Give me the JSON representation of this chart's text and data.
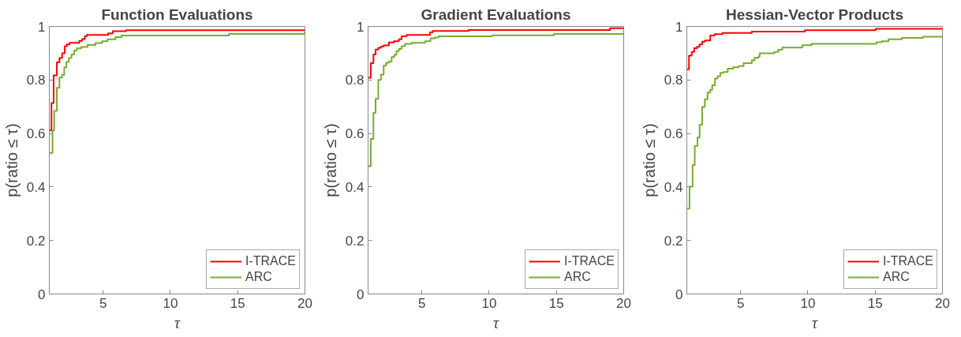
{
  "chart_data": [
    {
      "type": "step",
      "title": "Function Evaluations",
      "xlabel": "τ",
      "ylabel": "p(ratio ≤ τ)",
      "xlim": [
        1,
        20
      ],
      "ylim": [
        0,
        1
      ],
      "xticks": [
        5,
        10,
        15,
        20
      ],
      "yticks": [
        0,
        0.2,
        0.4,
        0.6,
        0.8,
        1
      ],
      "grid": false,
      "legend": "bottom right",
      "series": [
        {
          "name": "I-TRACE",
          "color": "#ff0000",
          "x": [
            1,
            1.16,
            1.32,
            1.56,
            1.75,
            1.95,
            2.15,
            2.31,
            2.51,
            3.24,
            3.44,
            3.64,
            3.78,
            5.37,
            5.72,
            6.71,
            20
          ],
          "values": [
            0.611,
            0.714,
            0.817,
            0.866,
            0.882,
            0.9,
            0.926,
            0.933,
            0.939,
            0.946,
            0.953,
            0.963,
            0.968,
            0.974,
            0.982,
            0.986,
            0.986
          ]
        },
        {
          "name": "ARC",
          "color": "#77ac30",
          "x": [
            1,
            1.24,
            1.36,
            1.56,
            1.75,
            1.95,
            2.11,
            2.27,
            2.45,
            2.65,
            2.85,
            3.04,
            3.38,
            3.84,
            4.43,
            4.93,
            5.33,
            5.92,
            6.36,
            14.35,
            19.97,
            20
          ],
          "values": [
            0.527,
            0.611,
            0.684,
            0.771,
            0.809,
            0.819,
            0.847,
            0.867,
            0.882,
            0.895,
            0.91,
            0.918,
            0.923,
            0.931,
            0.938,
            0.945,
            0.952,
            0.96,
            0.966,
            0.972,
            0.977,
            0.977
          ]
        }
      ]
    },
    {
      "type": "step",
      "title": "Gradient Evaluations",
      "xlabel": "τ",
      "ylabel": "p(ratio ≤ τ)",
      "xlim": [
        1,
        20
      ],
      "ylim": [
        0,
        1
      ],
      "xticks": [
        5,
        10,
        15,
        20
      ],
      "yticks": [
        0,
        0.2,
        0.4,
        0.6,
        0.8,
        1
      ],
      "grid": false,
      "legend": "bottom right",
      "series": [
        {
          "name": "I-TRACE",
          "color": "#ff0000",
          "x": [
            1,
            1.2,
            1.4,
            1.56,
            1.76,
            1.96,
            2.16,
            2.55,
            2.91,
            3.29,
            3.49,
            3.85,
            5.6,
            5.8,
            8.47,
            18.99,
            20
          ],
          "values": [
            0.808,
            0.863,
            0.895,
            0.914,
            0.92,
            0.925,
            0.929,
            0.94,
            0.945,
            0.952,
            0.963,
            0.968,
            0.978,
            0.983,
            0.987,
            0.993,
            0.993
          ]
        },
        {
          "name": "ARC",
          "color": "#77ac30",
          "x": [
            1,
            1.2,
            1.4,
            1.56,
            1.76,
            1.96,
            2.16,
            2.35,
            2.55,
            2.75,
            2.95,
            3.11,
            3.29,
            3.49,
            3.75,
            4.25,
            5.24,
            5.64,
            5.94,
            6.24,
            10.22,
            14.8,
            20
          ],
          "values": [
            0.478,
            0.58,
            0.677,
            0.729,
            0.8,
            0.82,
            0.854,
            0.864,
            0.869,
            0.886,
            0.894,
            0.908,
            0.916,
            0.926,
            0.935,
            0.939,
            0.945,
            0.955,
            0.959,
            0.963,
            0.967,
            0.972,
            0.972
          ]
        }
      ]
    },
    {
      "type": "step",
      "title": "Hessian-Vector Products",
      "xlabel": "τ",
      "ylabel": "p(ratio ≤ τ)",
      "xlim": [
        1,
        20
      ],
      "ylim": [
        0,
        1
      ],
      "xticks": [
        5,
        10,
        15,
        20
      ],
      "yticks": [
        0,
        0.2,
        0.4,
        0.6,
        0.8,
        1
      ],
      "grid": false,
      "legend": "bottom right",
      "series": [
        {
          "name": "I-TRACE",
          "color": "#ff0000",
          "x": [
            1,
            1.16,
            1.36,
            1.55,
            1.75,
            1.95,
            2.14,
            2.34,
            2.74,
            3.07,
            3.66,
            5.83,
            9.78,
            15.04,
            20
          ],
          "values": [
            0.84,
            0.891,
            0.905,
            0.919,
            0.924,
            0.933,
            0.943,
            0.948,
            0.966,
            0.971,
            0.976,
            0.981,
            0.986,
            0.991,
            0.991
          ]
        },
        {
          "name": "ARC",
          "color": "#77ac30",
          "x": [
            1,
            1.2,
            1.43,
            1.59,
            1.79,
            1.95,
            2.14,
            2.34,
            2.54,
            2.74,
            2.89,
            3.09,
            3.29,
            3.49,
            3.72,
            4.04,
            4.45,
            4.85,
            5.22,
            5.83,
            6.03,
            6.33,
            6.42,
            7.51,
            7.8,
            8.1,
            9.58,
            10.27,
            15.1,
            15.5,
            15.99,
            16.98,
            18.55,
            20
          ],
          "values": [
            0.319,
            0.401,
            0.482,
            0.553,
            0.585,
            0.633,
            0.699,
            0.728,
            0.753,
            0.763,
            0.78,
            0.805,
            0.814,
            0.827,
            0.83,
            0.842,
            0.847,
            0.852,
            0.863,
            0.873,
            0.883,
            0.888,
            0.9,
            0.905,
            0.913,
            0.921,
            0.93,
            0.935,
            0.941,
            0.945,
            0.952,
            0.957,
            0.962,
            0.962
          ]
        }
      ]
    }
  ]
}
